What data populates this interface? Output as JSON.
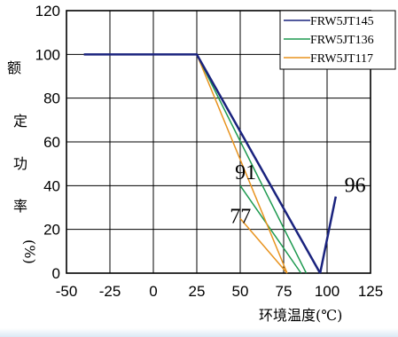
{
  "chart_data": {
    "type": "line",
    "title": "",
    "ylabel_chars": [
      "额",
      "定",
      "功",
      "率",
      "(%)"
    ],
    "xlabel": "环境温度(℃)",
    "xlim": [
      -50,
      125
    ],
    "ylim": [
      0,
      120
    ],
    "x_ticks": [
      "-50",
      "-25",
      "0",
      "25",
      "50",
      "75",
      "100",
      "125"
    ],
    "y_ticks": [
      "0",
      "20",
      "40",
      "60",
      "80",
      "100",
      "120"
    ],
    "legend_position": "top-right",
    "series": [
      {
        "name": "FRW5JT145",
        "color": "#1a237e",
        "width": 2.5,
        "points": [
          [
            -40,
            100
          ],
          [
            25,
            100
          ],
          [
            96,
            0
          ]
        ]
      },
      {
        "name": "FRW5JT136",
        "color": "#1e9a50",
        "width": 1.5,
        "points": [
          [
            25,
            100
          ],
          [
            88,
            0
          ]
        ]
      },
      {
        "name": "FRW5JT117",
        "color": "#e8931e",
        "width": 1.5,
        "points": [
          [
            25,
            100
          ],
          [
            77,
            0
          ]
        ]
      }
    ],
    "extra_segments": [
      {
        "series": "FRW5JT145",
        "points": [
          [
            96,
            0
          ],
          [
            105,
            35
          ]
        ]
      },
      {
        "series": "FRW5JT136",
        "points": [
          [
            50,
            40
          ],
          [
            85,
            0
          ]
        ]
      },
      {
        "series": "FRW5JT117",
        "points": [
          [
            50,
            25
          ],
          [
            77,
            0
          ]
        ]
      }
    ],
    "annotations": [
      {
        "text": "91",
        "x": 47,
        "y": 43
      },
      {
        "text": "77",
        "x": 44,
        "y": 23
      },
      {
        "text": "96",
        "x": 110,
        "y": 37
      }
    ]
  }
}
